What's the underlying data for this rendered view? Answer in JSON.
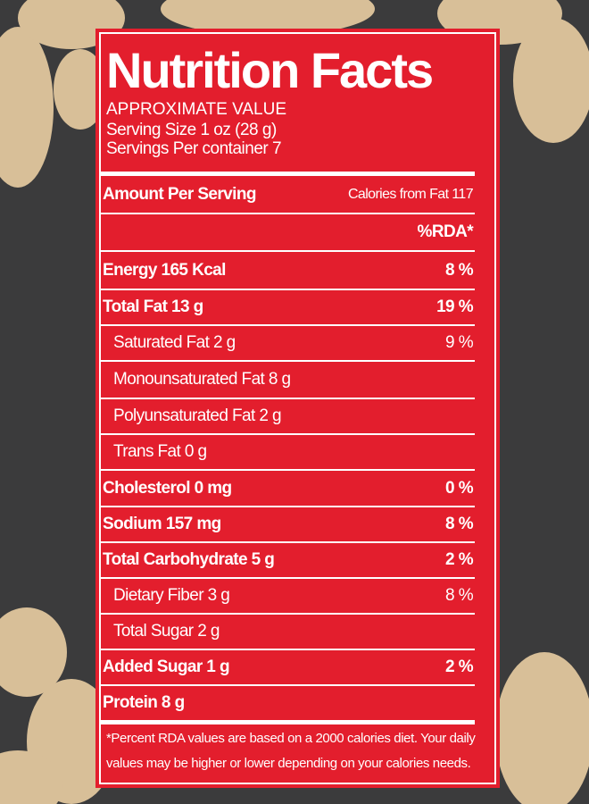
{
  "title": "Nutrition Facts",
  "subtitle": "APPROXIMATE VALUE",
  "serving_size": "Serving Size 1 oz (28 g)",
  "servings_per_container": "Servings Per container 7",
  "header": {
    "label": "Amount Per Serving",
    "calories_from_fat": "Calories from Fat 117"
  },
  "rda_header": "%RDA*",
  "rows": [
    [
      "Energy 165 Kcal",
      "8 %"
    ],
    [
      "Total Fat 13 g",
      "19 %"
    ],
    [
      "Saturated Fat 2 g",
      "9 %"
    ],
    [
      "Monounsaturated Fat 8 g"
    ],
    [
      "Polyunsaturated Fat 2 g"
    ],
    [
      "Trans Fat  0 g"
    ],
    [
      "Cholesterol 0 mg",
      "0 %"
    ],
    [
      "Sodium 157 mg",
      "8 %"
    ],
    [
      "Total Carbohydrate 5 g",
      "2 %"
    ],
    [
      "Dietary Fiber 3 g",
      "8 %"
    ],
    [
      "Total Sugar 2 g"
    ],
    [
      "Added Sugar 1 g",
      "2 %"
    ],
    [
      "Protein 8 g"
    ]
  ],
  "footnote": [
    "*Percent RDA values are based on a 2000 calories diet. Your daily",
    "values may be higher or lower depending on your calories needs."
  ]
}
